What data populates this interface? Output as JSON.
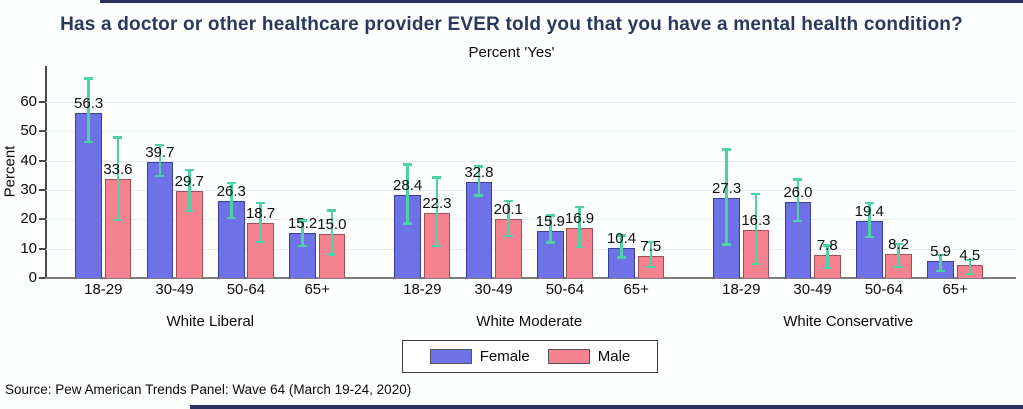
{
  "source_note": "Source: Pew American Trends Panel: Wave 64 (March 19-24, 2020)",
  "colors": {
    "female_fill": "#6f72e6",
    "female_border": "#3a3f9e",
    "male_fill": "#f5828e",
    "male_border": "#a04e59",
    "error_bar": "#4ed1a4",
    "title_text": "#29395e",
    "edge_strip": "#27315a"
  },
  "chart_data": {
    "type": "bar",
    "title": "Has a doctor or other healthcare provider EVER told you that you have a mental health condition?",
    "subtitle": "Percent 'Yes'",
    "ylabel": "Percent",
    "xlabel": "",
    "ylim": [
      0,
      72
    ],
    "yticks": [
      0,
      10,
      20,
      30,
      40,
      50,
      60
    ],
    "grid": "horizontal",
    "error_bars": true,
    "legend": {
      "position": "bottom-center",
      "entries": [
        {
          "label": "Female",
          "color": "#6f72e6"
        },
        {
          "label": "Male",
          "color": "#f5828e"
        }
      ]
    },
    "categories": [
      "18-29",
      "30-49",
      "50-64",
      "65+"
    ],
    "groups": [
      {
        "label": "White Liberal",
        "series": [
          {
            "name": "Female",
            "values": [
              56.3,
              39.7,
              26.3,
              15.2
            ],
            "ci_low": [
              46.0,
              34.3,
              20.1,
              10.5
            ],
            "ci_high": [
              68.5,
              45.7,
              32.8,
              20.1
            ]
          },
          {
            "name": "Male",
            "values": [
              33.6,
              29.7,
              18.7,
              15.0
            ],
            "ci_low": [
              19.3,
              22.4,
              11.8,
              7.6
            ],
            "ci_high": [
              48.3,
              37.2,
              26.0,
              23.5
            ]
          }
        ]
      },
      {
        "label": "White Moderate",
        "series": [
          {
            "name": "Female",
            "values": [
              28.4,
              32.8,
              15.9,
              10.4
            ],
            "ci_low": [
              18.2,
              27.7,
              11.6,
              6.5
            ],
            "ci_high": [
              39.2,
              38.5,
              21.8,
              15.0
            ]
          },
          {
            "name": "Male",
            "values": [
              22.3,
              20.1,
              16.9,
              7.5
            ],
            "ci_low": [
              10.5,
              13.9,
              10.1,
              3.3
            ],
            "ci_high": [
              34.7,
              26.7,
              24.7,
              12.7
            ]
          }
        ]
      },
      {
        "label": "White Conservative",
        "series": [
          {
            "name": "Female",
            "values": [
              27.3,
              26.0,
              19.4,
              5.9
            ],
            "ci_low": [
              11.0,
              19.0,
              13.5,
              2.0
            ],
            "ci_high": [
              44.2,
              34.0,
              26.0,
              8.2
            ]
          },
          {
            "name": "Male",
            "values": [
              16.3,
              7.8,
              8.2,
              4.5
            ],
            "ci_low": [
              4.4,
              3.0,
              3.3,
              1.0
            ],
            "ci_high": [
              29.0,
              11.5,
              12.0,
              6.5
            ]
          }
        ]
      }
    ]
  }
}
